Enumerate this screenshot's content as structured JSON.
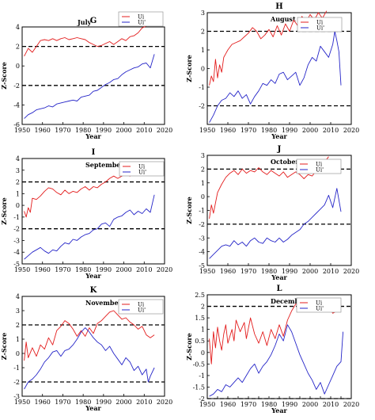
{
  "figure": {
    "ylabel": "Z-Score",
    "xlabel": "Year"
  },
  "colors": {
    "ui": "#e31c1c",
    "ui_prime": "#2525c8",
    "threshold": "#000000",
    "frame": "#000000"
  },
  "legend": {
    "ui": "Ui",
    "ui_prime": "Ui'"
  },
  "chart_data": [
    {
      "type": "line",
      "panel": "G",
      "title": "July",
      "xlabel": "Year",
      "ylabel": "Z-Score",
      "xlim": [
        1950,
        2020
      ],
      "ylim": [
        -6,
        4
      ],
      "xticks": [
        1950,
        1960,
        1970,
        1980,
        1990,
        2000,
        2010,
        2020
      ],
      "yticks": [
        -6,
        -4,
        -2,
        0,
        2,
        4
      ],
      "thresholds": [
        2,
        -2
      ],
      "series": [
        {
          "name": "Ui",
          "x": [
            1951,
            1953,
            1955,
            1957,
            1959,
            1961,
            1963,
            1965,
            1967,
            1969,
            1971,
            1973,
            1975,
            1977,
            1979,
            1981,
            1983,
            1985,
            1987,
            1989,
            1991,
            1993,
            1995,
            1997,
            1999,
            2001,
            2003,
            2005,
            2007,
            2009,
            2011,
            2013
          ],
          "y": [
            1.0,
            1.8,
            1.4,
            2.0,
            2.6,
            2.7,
            2.6,
            2.8,
            2.6,
            2.8,
            2.9,
            2.7,
            2.8,
            2.9,
            2.8,
            2.7,
            2.4,
            2.2,
            2.0,
            2.1,
            2.3,
            2.5,
            2.2,
            2.5,
            2.8,
            2.6,
            3.0,
            3.1,
            3.4,
            3.9,
            4.1,
            4.4
          ]
        },
        {
          "name": "Ui'",
          "x": [
            1951,
            1953,
            1955,
            1957,
            1959,
            1961,
            1963,
            1965,
            1967,
            1969,
            1971,
            1973,
            1975,
            1977,
            1979,
            1981,
            1983,
            1985,
            1987,
            1989,
            1991,
            1993,
            1995,
            1997,
            1999,
            2001,
            2003,
            2005,
            2007,
            2009,
            2011,
            2013,
            2015
          ],
          "y": [
            -5.4,
            -5.0,
            -4.8,
            -4.5,
            -4.4,
            -4.3,
            -4.1,
            -4.2,
            -3.9,
            -3.8,
            -3.7,
            -3.6,
            -3.5,
            -3.6,
            -3.2,
            -3.1,
            -3.0,
            -2.6,
            -2.5,
            -2.2,
            -1.9,
            -1.7,
            -1.4,
            -1.3,
            -0.9,
            -0.6,
            -0.4,
            -0.2,
            -0.1,
            0.2,
            0.3,
            -0.2,
            1.2
          ]
        }
      ]
    },
    {
      "type": "line",
      "panel": "H",
      "title": "August",
      "xlabel": "Year",
      "ylabel": "Z-Score",
      "xlim": [
        1950,
        2020
      ],
      "ylim": [
        -3,
        3
      ],
      "xticks": [
        1950,
        1960,
        1970,
        1980,
        1990,
        2000,
        2010,
        2020
      ],
      "yticks": [
        -2,
        -1,
        0,
        1,
        2,
        3
      ],
      "thresholds": [
        2,
        -2
      ],
      "series": [
        {
          "name": "Ui",
          "x": [
            1951,
            1952,
            1953,
            1954,
            1955,
            1956,
            1957,
            1958,
            1959,
            1960,
            1962,
            1964,
            1966,
            1968,
            1970,
            1972,
            1974,
            1976,
            1978,
            1980,
            1982,
            1984,
            1986,
            1988,
            1990,
            1992,
            1994,
            1996,
            1998,
            2000,
            2002,
            2004,
            2006,
            2008
          ],
          "y": [
            -0.9,
            -0.4,
            -0.7,
            0.5,
            -0.5,
            0.2,
            -0.2,
            0.6,
            0.8,
            1.0,
            1.3,
            1.4,
            1.5,
            1.7,
            1.9,
            2.2,
            2.0,
            1.6,
            1.8,
            2.1,
            1.7,
            2.3,
            1.8,
            2.4,
            2.0,
            2.6,
            2.3,
            2.8,
            2.5,
            2.9,
            2.6,
            3.0,
            2.7,
            3.1
          ]
        },
        {
          "name": "Ui'",
          "x": [
            1951,
            1953,
            1955,
            1957,
            1959,
            1961,
            1963,
            1965,
            1967,
            1969,
            1971,
            1973,
            1975,
            1977,
            1979,
            1981,
            1983,
            1985,
            1987,
            1989,
            1991,
            1993,
            1995,
            1997,
            1999,
            2001,
            2003,
            2005,
            2007,
            2009,
            2011,
            2012,
            2013,
            2014,
            2015
          ],
          "y": [
            -2.9,
            -2.5,
            -2.0,
            -1.7,
            -1.6,
            -1.3,
            -1.5,
            -1.2,
            -1.6,
            -1.4,
            -1.9,
            -1.5,
            -1.2,
            -0.8,
            -0.9,
            -0.6,
            -0.8,
            -0.3,
            -0.2,
            -0.6,
            -0.4,
            -0.2,
            -0.9,
            -0.5,
            0.2,
            0.6,
            0.4,
            1.2,
            0.9,
            0.6,
            1.3,
            2.0,
            1.5,
            0.9,
            -0.9
          ]
        }
      ]
    },
    {
      "type": "line",
      "panel": "I",
      "title": "September",
      "xlabel": "Year",
      "ylabel": "Z-Score",
      "xlim": [
        1950,
        2020
      ],
      "ylim": [
        -5,
        4
      ],
      "xticks": [
        1950,
        1960,
        1970,
        1980,
        1990,
        2000,
        2010,
        2020
      ],
      "yticks": [
        -5,
        -4,
        -3,
        -2,
        -1,
        0,
        1,
        2,
        3,
        4
      ],
      "thresholds": [
        2,
        -2
      ],
      "series": [
        {
          "name": "Ui",
          "x": [
            1951,
            1952,
            1953,
            1954,
            1955,
            1957,
            1959,
            1961,
            1963,
            1965,
            1967,
            1969,
            1971,
            1973,
            1975,
            1977,
            1979,
            1981,
            1983,
            1985,
            1987,
            1989,
            1991,
            1993,
            1995,
            1997,
            1999,
            2001,
            2003,
            2005,
            2007,
            2009,
            2011,
            2013,
            2015
          ],
          "y": [
            -0.5,
            -1.0,
            -0.2,
            -0.6,
            0.6,
            0.5,
            0.8,
            1.2,
            1.5,
            1.4,
            1.1,
            0.9,
            1.3,
            1.0,
            1.2,
            1.1,
            1.4,
            1.6,
            1.3,
            1.6,
            1.5,
            1.8,
            2.0,
            2.3,
            2.5,
            2.3,
            2.5,
            2.7,
            2.5,
            2.9,
            2.8,
            3.1,
            3.3,
            3.4,
            3.6
          ]
        },
        {
          "name": "Ui'",
          "x": [
            1951,
            1953,
            1955,
            1957,
            1959,
            1961,
            1963,
            1965,
            1967,
            1969,
            1971,
            1973,
            1975,
            1977,
            1979,
            1981,
            1983,
            1985,
            1987,
            1989,
            1991,
            1993,
            1995,
            1997,
            1999,
            2001,
            2003,
            2005,
            2007,
            2009,
            2011,
            2013,
            2015
          ],
          "y": [
            -4.6,
            -4.3,
            -4.0,
            -3.8,
            -3.6,
            -3.9,
            -4.1,
            -3.8,
            -3.9,
            -3.5,
            -3.2,
            -3.3,
            -2.9,
            -3.0,
            -2.7,
            -2.5,
            -2.4,
            -2.1,
            -2.0,
            -1.6,
            -1.5,
            -1.8,
            -1.2,
            -1.0,
            -0.9,
            -0.6,
            -0.4,
            -0.8,
            -0.5,
            -0.7,
            -0.3,
            -0.6,
            0.9
          ]
        }
      ]
    },
    {
      "type": "line",
      "panel": "J",
      "title": "October",
      "xlabel": "Year",
      "ylabel": "Z-Score",
      "xlim": [
        1950,
        2020
      ],
      "ylim": [
        -5,
        3
      ],
      "xticks": [
        1950,
        1960,
        1970,
        1980,
        1990,
        2000,
        2010,
        2020
      ],
      "yticks": [
        -5,
        -4,
        -3,
        -2,
        -1,
        0,
        1,
        2,
        3
      ],
      "thresholds": [
        2,
        -2
      ],
      "series": [
        {
          "name": "Ui",
          "x": [
            1951,
            1952,
            1953,
            1955,
            1957,
            1959,
            1961,
            1963,
            1965,
            1967,
            1969,
            1971,
            1973,
            1975,
            1977,
            1979,
            1981,
            1983,
            1985,
            1987,
            1989,
            1991,
            1993,
            1995,
            1997,
            1999,
            2001,
            2003,
            2005,
            2007,
            2009
          ],
          "y": [
            -1.6,
            -0.6,
            -1.2,
            0.3,
            0.9,
            1.4,
            1.7,
            1.9,
            1.6,
            2.0,
            1.7,
            1.9,
            1.8,
            2.1,
            1.8,
            1.6,
            1.9,
            1.7,
            1.5,
            1.8,
            1.4,
            1.6,
            1.8,
            1.6,
            1.3,
            1.6,
            1.5,
            1.9,
            2.2,
            2.5,
            2.9
          ]
        },
        {
          "name": "Ui'",
          "x": [
            1951,
            1953,
            1955,
            1957,
            1959,
            1961,
            1963,
            1965,
            1967,
            1969,
            1971,
            1973,
            1975,
            1977,
            1979,
            1981,
            1983,
            1985,
            1987,
            1989,
            1991,
            1993,
            1995,
            1997,
            1999,
            2001,
            2003,
            2005,
            2007,
            2009,
            2011,
            2013,
            2015
          ],
          "y": [
            -4.5,
            -4.2,
            -3.9,
            -3.6,
            -3.5,
            -3.6,
            -3.2,
            -3.5,
            -3.3,
            -3.6,
            -3.2,
            -3.0,
            -3.3,
            -3.4,
            -3.0,
            -3.2,
            -3.3,
            -3.0,
            -3.3,
            -3.1,
            -2.8,
            -2.6,
            -2.4,
            -2.0,
            -1.8,
            -1.5,
            -1.2,
            -0.9,
            -0.6,
            0.1,
            -0.8,
            0.6,
            -1.1
          ]
        }
      ]
    },
    {
      "type": "line",
      "panel": "K",
      "title": "November",
      "xlabel": "Year",
      "ylabel": "Z-Score",
      "xlim": [
        1950,
        2020
      ],
      "ylim": [
        -3,
        4
      ],
      "xticks": [
        1950,
        1960,
        1970,
        1980,
        1990,
        2000,
        2010,
        2020
      ],
      "yticks": [
        -3,
        -2,
        -1,
        0,
        1,
        2,
        3,
        4
      ],
      "thresholds": [
        2,
        -2
      ],
      "series": [
        {
          "name": "Ui",
          "x": [
            1951,
            1952,
            1953,
            1955,
            1957,
            1959,
            1961,
            1963,
            1965,
            1967,
            1969,
            1971,
            1973,
            1975,
            1977,
            1979,
            1981,
            1983,
            1985,
            1987,
            1989,
            1991,
            1993,
            1995,
            1997,
            1999,
            2001,
            2003,
            2005,
            2007,
            2009,
            2011,
            2013,
            2015
          ],
          "y": [
            -0.5,
            0.8,
            -0.3,
            0.4,
            -0.2,
            0.6,
            0.3,
            1.1,
            0.6,
            1.6,
            1.9,
            2.3,
            2.1,
            1.7,
            1.2,
            1.6,
            1.2,
            1.8,
            1.4,
            2.1,
            2.3,
            2.6,
            2.9,
            3.0,
            2.7,
            2.4,
            2.5,
            2.2,
            2.0,
            1.7,
            1.9,
            1.3,
            1.1,
            1.3
          ]
        },
        {
          "name": "Ui'",
          "x": [
            1951,
            1953,
            1955,
            1957,
            1959,
            1961,
            1963,
            1965,
            1967,
            1969,
            1971,
            1973,
            1975,
            1977,
            1979,
            1981,
            1983,
            1985,
            1987,
            1989,
            1991,
            1993,
            1995,
            1997,
            1999,
            2001,
            2003,
            2005,
            2007,
            2009,
            2011,
            2012,
            2013,
            2015
          ],
          "y": [
            -2.5,
            -2.0,
            -1.8,
            -1.5,
            -1.1,
            -0.6,
            -0.3,
            0.1,
            0.2,
            -0.2,
            0.2,
            0.3,
            0.6,
            1.0,
            1.5,
            1.8,
            1.5,
            1.1,
            0.8,
            0.6,
            0.2,
            0.5,
            0.0,
            -0.4,
            -0.8,
            -0.3,
            -0.6,
            -1.2,
            -0.9,
            -1.5,
            -1.1,
            -2.0,
            -1.6,
            -1.0
          ]
        }
      ]
    },
    {
      "type": "line",
      "panel": "L",
      "title": "December",
      "xlabel": "Year",
      "ylabel": "Z-Score",
      "xlim": [
        1950,
        2020
      ],
      "ylim": [
        -2,
        2.5
      ],
      "xticks": [
        1950,
        1955,
        1960,
        1965,
        1970,
        1975,
        1980,
        1985,
        1990,
        1995,
        2000,
        2005,
        2010,
        2015,
        2020
      ],
      "yticks": [
        -2,
        -1.5,
        -1,
        -0.5,
        0,
        0.5,
        1,
        1.5,
        2,
        2.5
      ],
      "thresholds": [
        2,
        -2
      ],
      "series": [
        {
          "name": "Ui",
          "x": [
            1951,
            1952,
            1953,
            1954,
            1955,
            1956,
            1957,
            1958,
            1959,
            1960,
            1962,
            1963,
            1964,
            1966,
            1968,
            1969,
            1971,
            1973,
            1975,
            1977,
            1979,
            1981,
            1983,
            1985,
            1987,
            1989,
            1991,
            1993,
            1995,
            1997,
            1999,
            2001,
            2003,
            2005,
            2007,
            2009,
            2011,
            2013,
            2015
          ],
          "y": [
            0.6,
            -0.5,
            0.9,
            0.2,
            1.1,
            0.5,
            0.1,
            0.8,
            1.2,
            0.4,
            1.0,
            0.5,
            1.4,
            0.9,
            1.3,
            0.6,
            1.5,
            0.8,
            0.4,
            0.9,
            0.3,
            1.0,
            0.6,
            1.2,
            0.7,
            1.4,
            1.8,
            2.1,
            2.0,
            2.3,
            2.2,
            2.0,
            1.9,
            2.1,
            1.8,
            2.0,
            1.7,
            1.8,
            2.1
          ]
        },
        {
          "name": "Ui'",
          "x": [
            1951,
            1953,
            1955,
            1957,
            1959,
            1961,
            1963,
            1965,
            1967,
            1969,
            1971,
            1973,
            1975,
            1977,
            1979,
            1981,
            1983,
            1985,
            1987,
            1989,
            1991,
            1993,
            1995,
            1997,
            1999,
            2001,
            2003,
            2005,
            2007,
            2009,
            2011,
            2013,
            2015,
            2016
          ],
          "y": [
            -1.9,
            -1.8,
            -1.6,
            -1.7,
            -1.4,
            -1.5,
            -1.3,
            -1.1,
            -1.3,
            -1.0,
            -0.7,
            -0.5,
            -0.9,
            -0.6,
            -0.4,
            -0.1,
            0.3,
            0.8,
            0.5,
            1.2,
            0.9,
            0.4,
            -0.1,
            -0.5,
            -0.9,
            -1.2,
            -1.6,
            -1.3,
            -1.8,
            -1.4,
            -1.0,
            -0.6,
            -0.4,
            0.9
          ]
        }
      ]
    }
  ]
}
